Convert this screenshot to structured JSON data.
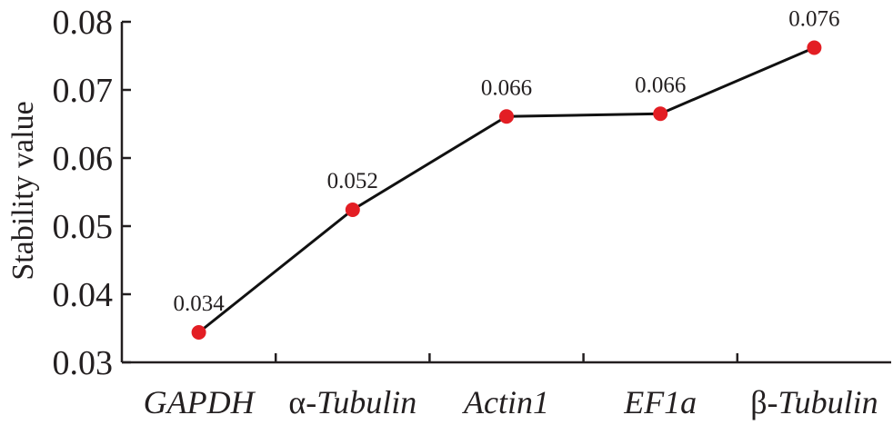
{
  "chart_data": {
    "type": "line",
    "title": "",
    "xlabel": "",
    "ylabel": "Stability value",
    "ylim": [
      0.03,
      0.08
    ],
    "yticks": [
      "0.03",
      "0.04",
      "0.05",
      "0.06",
      "0.07",
      "0.08"
    ],
    "grid": false,
    "categories": [
      {
        "prefix": "",
        "italic": "GAPDH"
      },
      {
        "prefix": "α-",
        "italic": "Tubulin"
      },
      {
        "prefix": "",
        "italic": "Actin1"
      },
      {
        "prefix": "",
        "italic": "EF1a"
      },
      {
        "prefix": "β-",
        "italic": "Tubulin"
      }
    ],
    "values": [
      0.0344,
      0.0524,
      0.0661,
      0.0665,
      0.0762
    ],
    "data_labels": [
      "0.034",
      "0.052",
      "0.066",
      "0.066",
      "0.076"
    ],
    "marker_color": "#e31e24",
    "line_color": "#111111"
  }
}
